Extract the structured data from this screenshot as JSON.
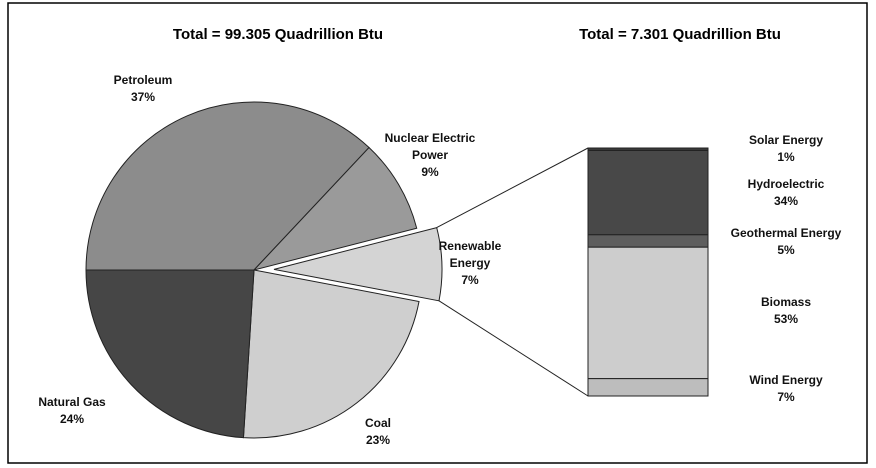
{
  "chart_data": [
    {
      "type": "pie",
      "title": "Total = 99.305 Quadrillion Btu",
      "categories": [
        "Petroleum",
        "Nuclear Electric Power",
        "Renewable Energy",
        "Coal",
        "Natural Gas"
      ],
      "values": [
        37,
        9,
        7,
        23,
        24
      ],
      "value_labels": [
        "37%",
        "9%",
        "7%",
        "23%",
        "24%"
      ],
      "colors": [
        "#8c8c8c",
        "#9a9a9a",
        "#d4d4d4",
        "#cfcfcf",
        "#464646"
      ]
    },
    {
      "type": "stacked-bar",
      "title": "Total = 7.301 Quadrillion Btu",
      "categories": [
        "Solar Energy",
        "Hydroelectric",
        "Geothermal Energy",
        "Biomass",
        "Wind Energy"
      ],
      "values": [
        1,
        34,
        5,
        53,
        7
      ],
      "value_labels": [
        "1%",
        "34%",
        "5%",
        "53%",
        "7%"
      ],
      "colors": [
        "#3a3a3a",
        "#484848",
        "#5e5e5e",
        "#cdcdcd",
        "#bdbdbd"
      ]
    }
  ]
}
